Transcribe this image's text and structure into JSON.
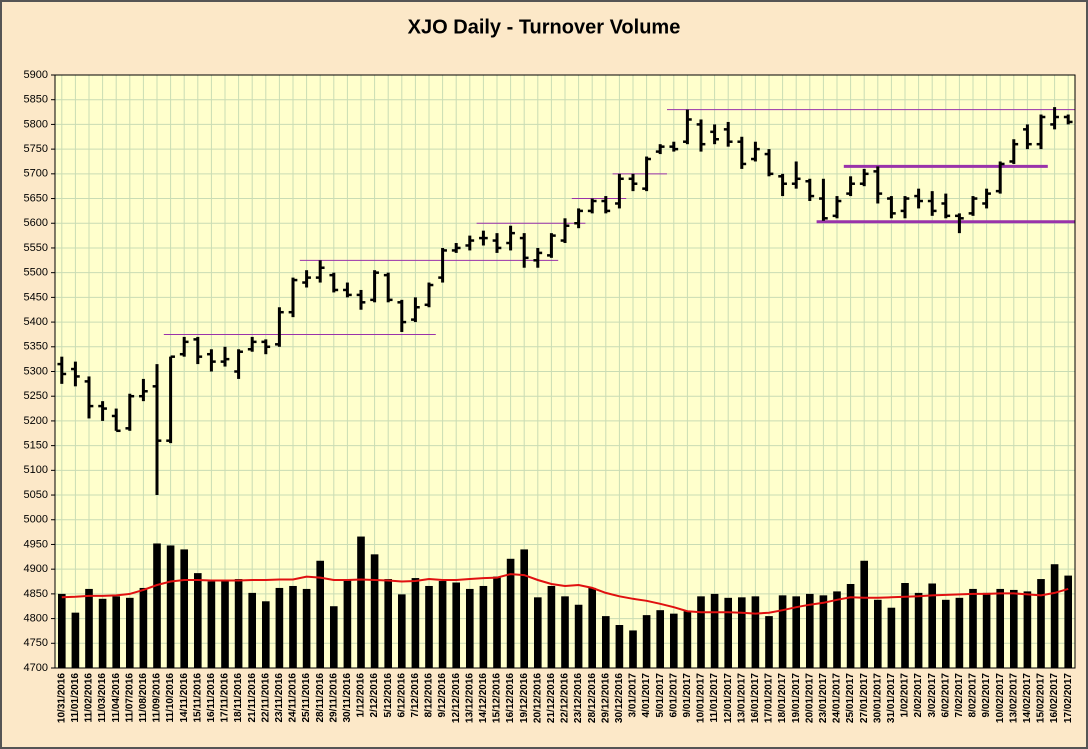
{
  "chart_data": {
    "type": "ohlc",
    "title": "XJO Daily - Turnover Volume",
    "categories": [
      "10/31/2016",
      "11/01/2016",
      "11/02/2016",
      "11/03/2016",
      "11/04/2016",
      "11/07/2016",
      "11/08/2016",
      "11/09/2016",
      "11/10/2016",
      "14/11/2016",
      "15/11/2016",
      "16/11/2016",
      "17/11/2016",
      "18/11/2016",
      "21/11/2016",
      "22/11/2016",
      "23/11/2016",
      "24/11/2016",
      "25/11/2016",
      "28/11/2016",
      "29/11/2016",
      "30/11/2016",
      "1/12/2016",
      "2/12/2016",
      "5/12/2016",
      "6/12/2016",
      "7/12/2016",
      "8/12/2016",
      "9/12/2016",
      "12/12/2016",
      "13/12/2016",
      "14/12/2016",
      "15/12/2016",
      "16/12/2016",
      "19/12/2016",
      "20/12/2016",
      "21/12/2016",
      "22/12/2016",
      "23/12/2016",
      "28/12/2016",
      "29/12/2016",
      "30/12/2016",
      "3/01/2017",
      "4/01/2017",
      "5/01/2017",
      "6/01/2017",
      "9/01/2017",
      "10/01/2017",
      "11/01/2017",
      "12/01/2017",
      "13/01/2017",
      "16/01/2017",
      "17/01/2017",
      "18/01/2017",
      "19/01/2017",
      "20/01/2017",
      "23/01/2017",
      "24/01/2017",
      "25/01/2017",
      "27/01/2017",
      "30/01/2017",
      "31/01/2017",
      "1/02/2017",
      "2/02/2017",
      "3/02/2017",
      "6/02/2017",
      "7/02/2017",
      "8/02/2017",
      "9/02/2017",
      "10/02/2017",
      "13/02/2017",
      "14/02/2017",
      "15/02/2017",
      "16/02/2017",
      "17/02/2017"
    ],
    "ylim": [
      4700,
      5900
    ],
    "yticks": [
      4700,
      4750,
      4800,
      4850,
      4900,
      4950,
      5000,
      5050,
      5100,
      5150,
      5200,
      5250,
      5300,
      5350,
      5400,
      5450,
      5500,
      5550,
      5600,
      5650,
      5700,
      5750,
      5800,
      5850,
      5900
    ],
    "grid": true,
    "ohlc": {
      "color": "#000000",
      "open": [
        5315,
        5305,
        5280,
        5230,
        5210,
        5185,
        5250,
        5270,
        5160,
        5335,
        5365,
        5335,
        5320,
        5300,
        5345,
        5360,
        5355,
        5420,
        5480,
        5490,
        5495,
        5465,
        5455,
        5445,
        5495,
        5440,
        5405,
        5435,
        5490,
        5545,
        5555,
        5570,
        5565,
        5560,
        5570,
        5525,
        5535,
        5565,
        5600,
        5625,
        5645,
        5640,
        5690,
        5670,
        5745,
        5755,
        5765,
        5800,
        5785,
        5790,
        5765,
        5730,
        5740,
        5695,
        5680,
        5685,
        5650,
        5615,
        5660,
        5680,
        5705,
        5650,
        5625,
        5655,
        5645,
        5640,
        5615,
        5620,
        5640,
        5665,
        5725,
        5790,
        5760,
        5800,
        5815
      ],
      "high": [
        5330,
        5320,
        5290,
        5240,
        5225,
        5255,
        5285,
        5315,
        5330,
        5370,
        5370,
        5345,
        5350,
        5345,
        5370,
        5365,
        5430,
        5490,
        5505,
        5525,
        5500,
        5480,
        5465,
        5505,
        5500,
        5445,
        5450,
        5480,
        5550,
        5560,
        5575,
        5585,
        5580,
        5595,
        5580,
        5550,
        5580,
        5610,
        5630,
        5650,
        5655,
        5700,
        5700,
        5735,
        5760,
        5765,
        5830,
        5810,
        5800,
        5805,
        5775,
        5765,
        5750,
        5700,
        5725,
        5690,
        5690,
        5655,
        5695,
        5710,
        5715,
        5655,
        5655,
        5670,
        5665,
        5660,
        5620,
        5655,
        5670,
        5725,
        5770,
        5800,
        5820,
        5835,
        5820
      ],
      "low": [
        5275,
        5270,
        5205,
        5200,
        5180,
        5180,
        5240,
        5050,
        5155,
        5330,
        5315,
        5300,
        5310,
        5285,
        5340,
        5335,
        5350,
        5410,
        5470,
        5480,
        5460,
        5450,
        5425,
        5440,
        5440,
        5380,
        5400,
        5430,
        5480,
        5540,
        5545,
        5555,
        5540,
        5545,
        5510,
        5510,
        5530,
        5560,
        5590,
        5620,
        5620,
        5630,
        5665,
        5665,
        5740,
        5745,
        5760,
        5745,
        5760,
        5755,
        5710,
        5725,
        5695,
        5655,
        5670,
        5645,
        5605,
        5610,
        5655,
        5675,
        5640,
        5610,
        5610,
        5630,
        5615,
        5610,
        5580,
        5615,
        5630,
        5660,
        5720,
        5750,
        5750,
        5790,
        5800
      ],
      "close": [
        5295,
        5290,
        5230,
        5225,
        5180,
        5250,
        5260,
        5160,
        5330,
        5360,
        5330,
        5320,
        5325,
        5340,
        5360,
        5350,
        5420,
        5485,
        5490,
        5510,
        5465,
        5455,
        5440,
        5500,
        5445,
        5400,
        5430,
        5475,
        5545,
        5550,
        5565,
        5570,
        5550,
        5580,
        5530,
        5540,
        5575,
        5595,
        5625,
        5645,
        5625,
        5690,
        5680,
        5730,
        5755,
        5750,
        5810,
        5760,
        5770,
        5765,
        5720,
        5750,
        5700,
        5680,
        5690,
        5655,
        5610,
        5645,
        5680,
        5700,
        5660,
        5620,
        5650,
        5645,
        5625,
        5615,
        5610,
        5650,
        5660,
        5720,
        5760,
        5760,
        5815,
        5815,
        5805
      ]
    },
    "volume": {
      "color": "#000000",
      "values": [
        4850,
        4812,
        4860,
        4840,
        4845,
        4842,
        4862,
        4952,
        4948,
        4940,
        4892,
        4875,
        4876,
        4880,
        4852,
        4835,
        4862,
        4866,
        4860,
        4917,
        4825,
        4877,
        4966,
        4930,
        4880,
        4849,
        4882,
        4866,
        4876,
        4873,
        4860,
        4866,
        4885,
        4921,
        4940,
        4843,
        4866,
        4845,
        4828,
        4862,
        4805,
        4787,
        4776,
        4807,
        4817,
        4810,
        4815,
        4845,
        4850,
        4842,
        4843,
        4845,
        4805,
        4847,
        4845,
        4850,
        4847,
        4855,
        4870,
        4917,
        4838,
        4822,
        4872,
        4852,
        4871,
        4838,
        4842,
        4860,
        4852,
        4860,
        4858,
        4855,
        4880,
        4910,
        4887
      ]
    },
    "average": {
      "color": "#e01010",
      "values": [
        4843,
        4844,
        4846,
        4846,
        4847,
        4850,
        4858,
        4868,
        4875,
        4878,
        4878,
        4877,
        4877,
        4877,
        4878,
        4878,
        4879,
        4879,
        4885,
        4883,
        4878,
        4878,
        4879,
        4878,
        4877,
        4875,
        4876,
        4880,
        4878,
        4878,
        4880,
        4882,
        4883,
        4890,
        4888,
        4878,
        4870,
        4866,
        4868,
        4862,
        4852,
        4845,
        4840,
        4836,
        4830,
        4823,
        4815,
        4813,
        4813,
        4813,
        4812,
        4810,
        4812,
        4817,
        4823,
        4828,
        4832,
        4838,
        4843,
        4842,
        4842,
        4843,
        4844,
        4845,
        4847,
        4848,
        4849,
        4850,
        4850,
        4851,
        4851,
        4849,
        4847,
        4852,
        4860
      ]
    },
    "level_color": "#9933aa",
    "levels": [
      {
        "value": 5375,
        "from": "11/10/2016",
        "to": "8/12/2016",
        "thick": false
      },
      {
        "value": 5525,
        "from": "25/11/2016",
        "to": "21/12/2016",
        "thick": false
      },
      {
        "value": 5600,
        "from": "14/12/2016",
        "to": "23/12/2016",
        "thick": false
      },
      {
        "value": 5650,
        "from": "23/12/2016",
        "to": "30/12/2016",
        "thick": false
      },
      {
        "value": 5700,
        "from": "30/12/2016",
        "to": "5/01/2017",
        "thick": false
      },
      {
        "value": 5830,
        "from": "6/01/2017",
        "to": "17/02/2017",
        "thick": false
      },
      {
        "value": 5715,
        "from": "25/01/2017",
        "to": "15/02/2017",
        "thick": true
      },
      {
        "value": 5603,
        "from": "23/01/2017",
        "to": "17/02/2017",
        "thick": true
      }
    ]
  }
}
